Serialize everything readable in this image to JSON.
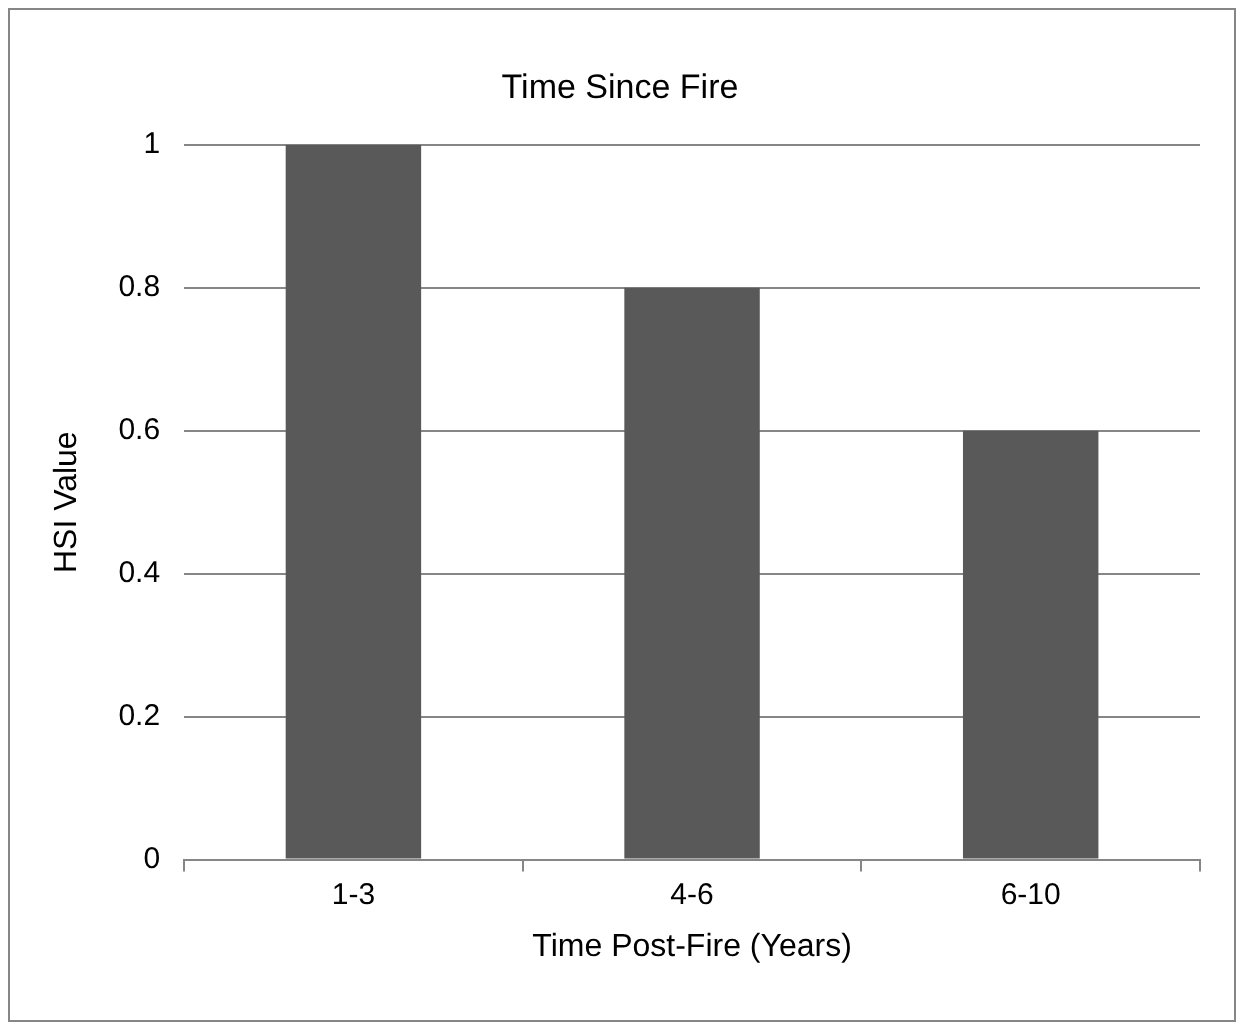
{
  "chart_data": {
    "type": "bar",
    "title": "Time Since Fire",
    "xlabel": "Time Post-Fire (Years)",
    "ylabel": "HSI Value",
    "categories": [
      "1-3",
      "4-6",
      "6-10"
    ],
    "values": [
      1,
      0.8,
      0.6
    ],
    "color": "#595959",
    "ylim": [
      0,
      1
    ],
    "yticks": [
      0,
      0.2,
      0.4,
      0.6,
      0.8,
      1
    ],
    "grid": "y",
    "legend": false
  }
}
